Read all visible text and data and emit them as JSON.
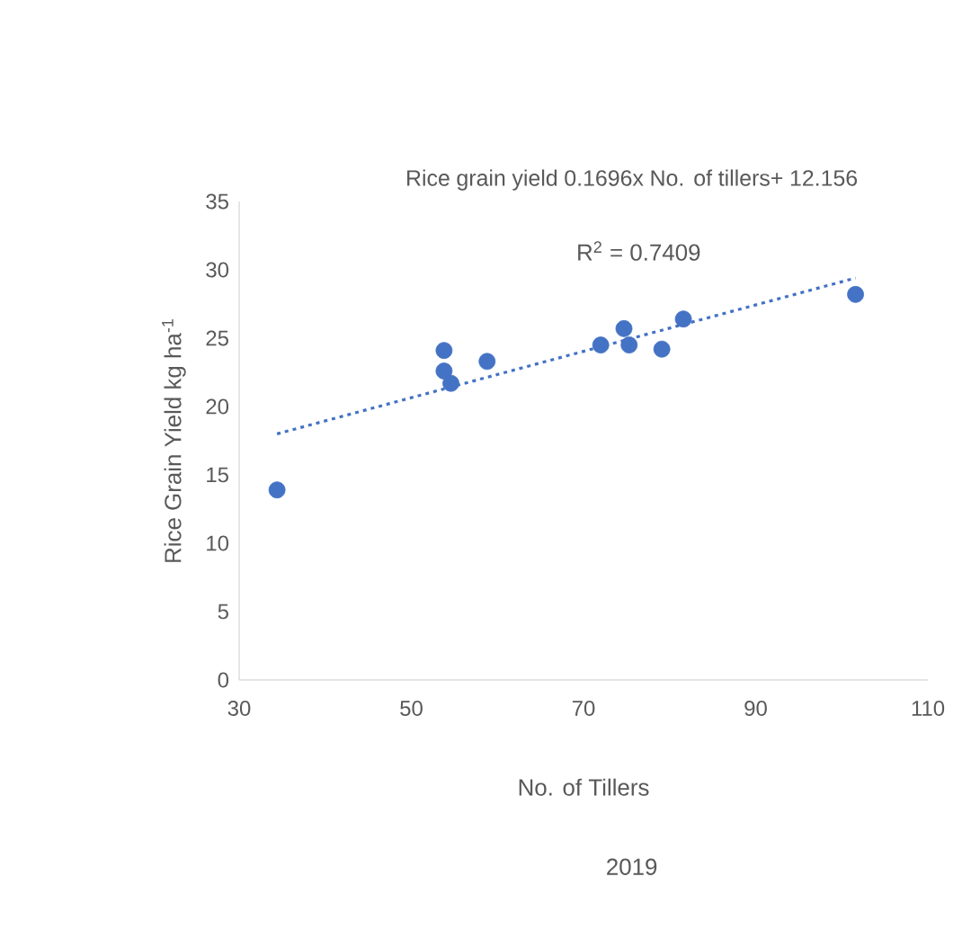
{
  "chart_data": {
    "type": "scatter",
    "title": "Rice grain yield 0.1696x No. of tillers+ 12.156",
    "xlabel": "No. of Tillers",
    "ylabel": "Rice Grain Yield kg ha$^{-1}$",
    "annotations": [
      "R$^{2}$ = 0.7409",
      "2019"
    ],
    "series": [
      {
        "color": "#4472c4",
        "marker": "circle",
        "x": [
          34.4,
          53.8,
          53.8,
          54.6,
          58.8,
          72.0,
          74.7,
          75.3,
          79.1,
          81.6,
          101.6
        ],
        "values": [
          13.9,
          24.1,
          22.6,
          21.7,
          23.3,
          24.5,
          25.7,
          24.5,
          24.2,
          26.4,
          28.2
        ]
      },
      {
        "type": "line",
        "color": "#4472c4",
        "line_style": "dotted",
        "marker": "none",
        "x": [
          34.4,
          101.6
        ],
        "values": [
          18.0,
          29.4
        ]
      }
    ],
    "xlim": [
      30,
      110
    ],
    "xticks": [
      30,
      50,
      70,
      90,
      110
    ],
    "ylim": [
      0,
      35
    ],
    "yticks": [
      0,
      5,
      10,
      15,
      20,
      25,
      30,
      35
    ]
  }
}
